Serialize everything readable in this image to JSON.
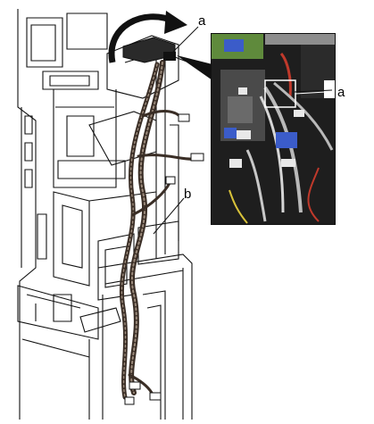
{
  "figure": {
    "callouts": {
      "a_main": "a",
      "a_inset": "a",
      "b": "b"
    },
    "icons": [
      "rotation-arrow-icon",
      "pointer-triangle-icon"
    ],
    "colors": {
      "line": "#111111",
      "cable": "#3a2e26",
      "inset_bg": "#1e1e1e",
      "connector_blue": "#3b5cc9",
      "board_green": "#5f8a3c",
      "wire_red": "#c0392b",
      "wire_grey": "#b9b9b9"
    }
  }
}
